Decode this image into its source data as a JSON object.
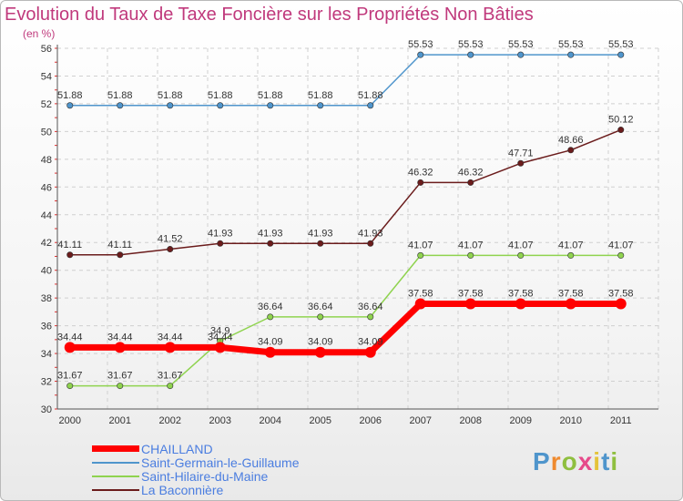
{
  "page": {
    "title": "Evolution du Taux de Taxe Foncière sur les Propriétés Non Bâties",
    "unit_label": "(en %)",
    "logo_text": "Proxiti"
  },
  "chart_data": {
    "type": "line",
    "title": "Evolution du Taux de Taxe Foncière sur les Propriétés Non Bâties",
    "ylabel": "(en %)",
    "xlabel": "",
    "ylim": [
      30,
      56
    ],
    "yticks": [
      30,
      32,
      34,
      36,
      38,
      40,
      42,
      44,
      46,
      48,
      50,
      52,
      54,
      56
    ],
    "grid": true,
    "categories": [
      "2000",
      "2001",
      "2002",
      "2003",
      "2004",
      "2005",
      "2006",
      "2007",
      "2008",
      "2009",
      "2010",
      "2011"
    ],
    "series": [
      {
        "name": "CHAILLAND",
        "color": "#ff0000",
        "values": [
          34.44,
          34.44,
          34.44,
          34.44,
          34.09,
          34.09,
          34.09,
          37.58,
          37.58,
          37.58,
          37.58,
          37.58
        ]
      },
      {
        "name": "Saint-Germain-le-Guillaume",
        "color": "#4f95cc",
        "values": [
          51.88,
          51.88,
          51.88,
          51.88,
          51.88,
          51.88,
          51.88,
          55.53,
          55.53,
          55.53,
          55.53,
          55.53
        ]
      },
      {
        "name": "Saint-Hilaire-du-Maine",
        "color": "#8fd34f",
        "values": [
          31.67,
          31.67,
          31.67,
          34.9,
          36.64,
          36.64,
          36.64,
          41.07,
          41.07,
          41.07,
          41.07,
          41.07
        ]
      },
      {
        "name": "La Baconnière",
        "color": "#6b1c1c",
        "values": [
          41.11,
          41.11,
          41.52,
          41.93,
          41.93,
          41.93,
          41.93,
          46.32,
          46.32,
          47.71,
          48.66,
          50.12
        ]
      }
    ],
    "value_labels": [
      {
        "series": "CHAILLAND",
        "labels": [
          "34.44",
          "34.44",
          "34.44",
          "34.44",
          "34.09",
          "34.09",
          "34.09",
          "37.58",
          "37.58",
          "37.58",
          "37.58",
          "37.58"
        ]
      },
      {
        "series": "Saint-Germain-le-Guillaume",
        "labels": [
          "51.88",
          "51.88",
          "51.88",
          "51.88",
          "51.88",
          "51.88",
          "51.88",
          "55.53",
          "55.53",
          "55.53",
          "55.53",
          "55.53"
        ]
      },
      {
        "series": "Saint-Hilaire-du-Maine",
        "labels": [
          "31.67",
          "31.67",
          "31.67",
          "34.9",
          "36.64",
          "36.64",
          "36.64",
          "41.07",
          "41.07",
          "41.07",
          "41.07",
          "41.07"
        ]
      },
      {
        "series": "La Baconnière",
        "labels": [
          "41.11",
          "41.11",
          "41.52",
          "41.93",
          "41.93",
          "41.93",
          "41.93",
          "46.32",
          "46.32",
          "47.71",
          "48.66",
          "50.12"
        ]
      }
    ],
    "legend": "bottom-left"
  }
}
